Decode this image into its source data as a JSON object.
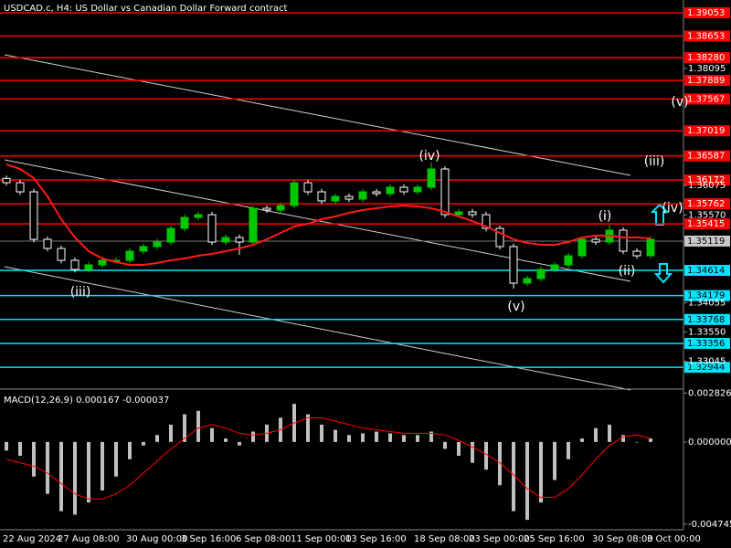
{
  "chart_data": {
    "type": "candlestick",
    "title": "USDCAD.c, H4: US Dollar vs Canadian Dollar Forward contract",
    "x": [
      "22 Aug 2024",
      null,
      null,
      null,
      "27 Aug 08:00",
      null,
      null,
      null,
      null,
      "30 Aug 00:00",
      null,
      null,
      null,
      "3 Sep 16:00",
      null,
      null,
      null,
      "6 Sep 08:00",
      null,
      null,
      null,
      "11 Sep 00:00",
      null,
      null,
      null,
      "13 Sep 16:00",
      null,
      null,
      null,
      null,
      "18 Sep 08:00",
      null,
      null,
      null,
      "23 Sep 00:00",
      null,
      null,
      null,
      "25 Sep 16:00",
      null,
      null,
      null,
      null,
      "30 Sep 08:00",
      null,
      null,
      null,
      "3 Oct 00:00"
    ],
    "open": [
      1.362,
      1.36125,
      1.35968,
      1.35149,
      1.34992,
      1.34787,
      1.3463,
      1.34709,
      1.34787,
      1.34787,
      1.34945,
      1.35024,
      1.35102,
      1.35338,
      1.35527,
      1.35574,
      1.35102,
      1.35181,
      1.35102,
      1.35685,
      1.35653,
      1.35732,
      1.36125,
      1.35968,
      1.35811,
      1.35889,
      1.35842,
      1.35968,
      1.35936,
      1.36047,
      1.35968,
      1.36047,
      1.36361,
      1.35574,
      1.35622,
      1.35574,
      1.35338,
      1.35024,
      1.34394,
      1.34473,
      1.3463,
      1.34709,
      1.34866,
      1.35149,
      1.35102,
      1.35307,
      1.34945,
      1.34866
    ],
    "high": [
      1.3625,
      1.36175,
      1.36018,
      1.35199,
      1.35042,
      1.34837,
      1.34759,
      1.34837,
      1.34837,
      1.34995,
      1.35074,
      1.35152,
      1.35388,
      1.35577,
      1.35624,
      1.35624,
      1.35231,
      1.35231,
      1.35735,
      1.35735,
      1.35782,
      1.36175,
      1.36175,
      1.36018,
      1.35939,
      1.35939,
      1.36018,
      1.36018,
      1.36097,
      1.36097,
      1.36097,
      1.3648,
      1.36411,
      1.35672,
      1.35672,
      1.35624,
      1.35388,
      1.35074,
      1.34523,
      1.3468,
      1.34759,
      1.34916,
      1.35199,
      1.35199,
      1.354,
      1.35357,
      1.34995,
      1.35199
    ],
    "low": [
      1.36075,
      1.35918,
      1.35099,
      1.34942,
      1.34737,
      1.3458,
      1.3458,
      1.34659,
      1.34737,
      1.34737,
      1.34895,
      1.34974,
      1.35052,
      1.35288,
      1.35477,
      1.35052,
      1.35052,
      1.3488,
      1.35052,
      1.35603,
      1.35603,
      1.35682,
      1.35918,
      1.35761,
      1.35761,
      1.35792,
      1.35792,
      1.35886,
      1.35886,
      1.35918,
      1.35918,
      1.35997,
      1.35524,
      1.35524,
      1.35524,
      1.35288,
      1.34974,
      1.343,
      1.34344,
      1.34423,
      1.3458,
      1.34659,
      1.34816,
      1.35052,
      1.35052,
      1.34895,
      1.34816,
      1.34816
    ],
    "close": [
      1.36125,
      1.35968,
      1.35149,
      1.34992,
      1.34787,
      1.3463,
      1.34709,
      1.34787,
      1.34787,
      1.34945,
      1.35024,
      1.35102,
      1.35338,
      1.35527,
      1.35574,
      1.35102,
      1.35181,
      1.35102,
      1.35685,
      1.35653,
      1.35732,
      1.36125,
      1.35968,
      1.35811,
      1.35889,
      1.35842,
      1.35968,
      1.35936,
      1.36047,
      1.35968,
      1.36047,
      1.36361,
      1.35574,
      1.35622,
      1.35574,
      1.35338,
      1.35024,
      1.34394,
      1.34473,
      1.3463,
      1.34709,
      1.34866,
      1.35149,
      1.35102,
      1.35307,
      1.34945,
      1.34866,
      1.35149
    ],
    "up_color": "#00c800",
    "down_color": "#ffffff",
    "ma": {
      "color": "#ff1a1a",
      "values": [
        1.3644,
        1.36361,
        1.36204,
        1.35889,
        1.35496,
        1.35181,
        1.34945,
        1.34819,
        1.34756,
        1.34709,
        1.34709,
        1.3474,
        1.34787,
        1.34819,
        1.34866,
        1.34898,
        1.34945,
        1.34992,
        1.35055,
        1.35149,
        1.3526,
        1.3537,
        1.35417,
        1.35496,
        1.35543,
        1.35606,
        1.35653,
        1.35685,
        1.35716,
        1.35732,
        1.35716,
        1.35685,
        1.35622,
        1.35543,
        1.35464,
        1.3537,
        1.3526,
        1.35149,
        1.35087,
        1.35055,
        1.35055,
        1.35102,
        1.35181,
        1.35212,
        1.35212,
        1.35181,
        1.35181,
        1.35165
      ]
    },
    "ylim": [
      1.32584,
      1.39195
    ],
    "yticks": [
      1.38095,
      1.36075,
      {
        "value": 1.3557,
        "label": "1.35570"
      },
      1.34055,
      {
        "value": 1.3355,
        "label": "1.33550"
      },
      1.33045
    ],
    "resistance_color": "#ff0000",
    "resistance_levels": [
      1.39053,
      1.38653,
      {
        "value": 1.3828,
        "label": "1.38280"
      },
      1.37889,
      1.37567,
      1.37019,
      1.36587,
      1.36172,
      1.35762,
      1.35415
    ],
    "support_color": "#00e5ff",
    "support_levels": [
      1.34614,
      1.34179,
      1.33768,
      1.33356,
      1.32944
    ],
    "current_price": 1.35119,
    "annotations": [
      "(iii)",
      "(iv)",
      "(v)",
      "(i)",
      "(ii)",
      "(iii)",
      "(iv)",
      "(v)"
    ],
    "macd": {
      "title": "MACD(12,26,9) 0.000167 -0.000037",
      "histogram_color": "#c0c0c0",
      "signal_color": "#ff0000",
      "histogram": [
        -0.0005,
        -0.0008,
        -0.002,
        -0.003,
        -0.004,
        -0.0042,
        -0.0035,
        -0.0028,
        -0.002,
        -0.001,
        -0.0002,
        0.0004,
        0.001,
        0.0016,
        0.0018,
        0.0008,
        0.0002,
        -0.0002,
        0.0006,
        0.001,
        0.0014,
        0.0022,
        0.0016,
        0.001,
        0.0007,
        0.0004,
        0.0005,
        0.0006,
        0.0005,
        0.0004,
        0.0004,
        0.0006,
        -0.0004,
        -0.0008,
        -0.0012,
        -0.0016,
        -0.0025,
        -0.004,
        -0.0045,
        -0.0035,
        -0.0022,
        -0.001,
        0.0002,
        0.0008,
        0.001,
        0.0004,
        0,
        0.0002
      ],
      "signal": [
        -0.001,
        -0.0012,
        -0.0014,
        -0.0018,
        -0.0024,
        -0.003,
        -0.0033,
        -0.0033,
        -0.003,
        -0.0025,
        -0.0018,
        -0.0011,
        -0.0004,
        0.0002,
        0.0008,
        0.001,
        0.0008,
        0.0005,
        0.0004,
        0.0005,
        0.0007,
        0.0011,
        0.0014,
        0.0014,
        0.0012,
        0.001,
        0.0008,
        0.0007,
        0.0006,
        0.0005,
        0.0005,
        0.0005,
        0.0004,
        0.0001,
        -0.0003,
        -0.0007,
        -0.0012,
        -0.0019,
        -0.0027,
        -0.0032,
        -0.0032,
        -0.0027,
        -0.0019,
        -0.001,
        -0.0002,
        0.0003,
        0.0004,
        0.0002
      ],
      "ylim": [
        -0.0056,
        0.00295
      ],
      "yticks": [
        0.002826,
        {
          "value": 0,
          "label": "0.000000"
        },
        -0.004745
      ]
    }
  }
}
